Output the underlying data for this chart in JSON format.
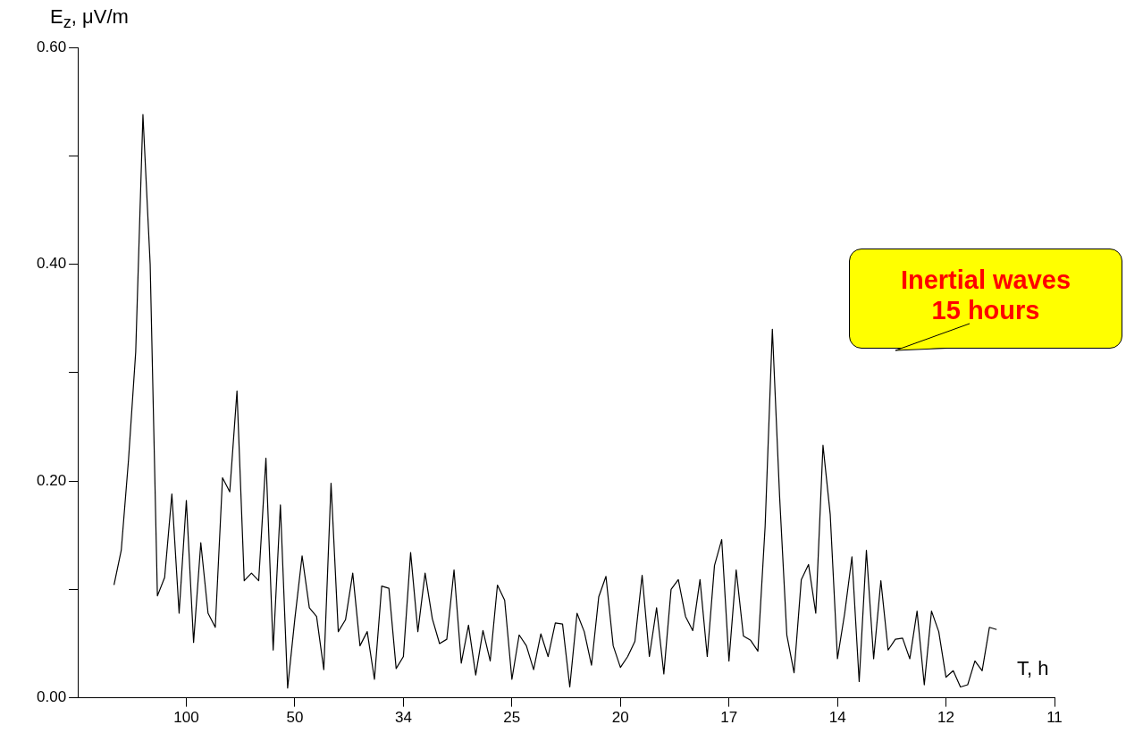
{
  "chart_data": {
    "type": "line",
    "xlabel": "T, h",
    "ylabel": "E$_{z}$, μV/m",
    "annotations": [
      "Inertial waves\n15 hours"
    ],
    "categories": [
      null,
      null,
      null,
      null,
      null,
      null,
      null,
      null,
      null,
      null,
      null,
      null,
      null,
      null,
      null,
      "100",
      null,
      null,
      null,
      null,
      null,
      null,
      null,
      null,
      null,
      null,
      null,
      null,
      null,
      null,
      "50",
      null,
      null,
      null,
      null,
      null,
      null,
      null,
      null,
      null,
      null,
      null,
      null,
      null,
      null,
      "34",
      null,
      null,
      null,
      null,
      null,
      null,
      null,
      null,
      null,
      null,
      null,
      null,
      null,
      null,
      "25",
      null,
      null,
      null,
      null,
      null,
      null,
      null,
      null,
      null,
      null,
      null,
      null,
      null,
      null,
      "20",
      null,
      null,
      null,
      null,
      null,
      null,
      null,
      null,
      null,
      null,
      null,
      null,
      null,
      null,
      "17",
      null,
      null,
      null,
      null,
      null,
      null,
      null,
      null,
      null,
      null,
      null,
      null,
      null,
      null,
      "14",
      null,
      null,
      null,
      null,
      null,
      null,
      null,
      null,
      null,
      null,
      null,
      null,
      null,
      null,
      "12",
      null,
      null,
      null,
      null,
      null,
      null,
      null,
      null,
      null,
      null,
      null,
      null,
      null,
      null,
      "11"
    ],
    "ylim": [
      0,
      0.6
    ],
    "yticks": [
      {
        "value": 0,
        "label": "0.00"
      },
      {
        "value": 0.1,
        "label": null
      },
      {
        "value": 0.2,
        "label": "0.20"
      },
      {
        "value": 0.3,
        "label": null
      },
      {
        "value": 0.4,
        "label": "0.40"
      },
      {
        "value": 0.5,
        "label": null
      },
      {
        "value": 0.6,
        "label": "0.60"
      }
    ],
    "grid": false,
    "legend": false,
    "marker": "none",
    "line_style": "solid",
    "series": [
      {
        "color": "#000000",
        "values": [
          null,
          null,
          null,
          null,
          null,
          0.104,
          0.136,
          0.219,
          0.319,
          0.538,
          0.4,
          0.094,
          0.111,
          0.188,
          0.078,
          0.182,
          0.051,
          0.143,
          0.078,
          0.065,
          0.203,
          0.19,
          0.283,
          0.108,
          0.115,
          0.108,
          0.221,
          0.044,
          0.178,
          0.009,
          0.073,
          0.131,
          0.083,
          0.075,
          0.026,
          0.198,
          0.061,
          0.072,
          0.115,
          0.048,
          0.061,
          0.017,
          0.103,
          0.101,
          0.027,
          0.038,
          0.134,
          0.061,
          0.115,
          0.073,
          0.05,
          0.054,
          0.118,
          0.032,
          0.067,
          0.021,
          0.062,
          0.034,
          0.104,
          0.09,
          0.017,
          0.058,
          0.048,
          0.026,
          0.059,
          0.038,
          0.069,
          0.068,
          0.01,
          0.078,
          0.061,
          0.03,
          0.093,
          0.112,
          0.048,
          0.028,
          0.038,
          0.052,
          0.113,
          0.038,
          0.083,
          0.022,
          0.1,
          0.109,
          0.075,
          0.062,
          0.109,
          0.038,
          0.122,
          0.146,
          0.034,
          0.118,
          0.057,
          0.053,
          0.043,
          0.158,
          0.34,
          0.186,
          0.058,
          0.023,
          0.109,
          0.123,
          0.078,
          0.233,
          0.169,
          0.036,
          0.078,
          0.13,
          0.015,
          0.136,
          0.036,
          0.108,
          0.044,
          0.054,
          0.055,
          0.036,
          0.08,
          0.012,
          0.08,
          0.061,
          0.019,
          0.025,
          0.01,
          0.012,
          0.034,
          0.025,
          0.065,
          0.063,
          null,
          null,
          null,
          null,
          null,
          null,
          null,
          null
        ]
      }
    ]
  }
}
